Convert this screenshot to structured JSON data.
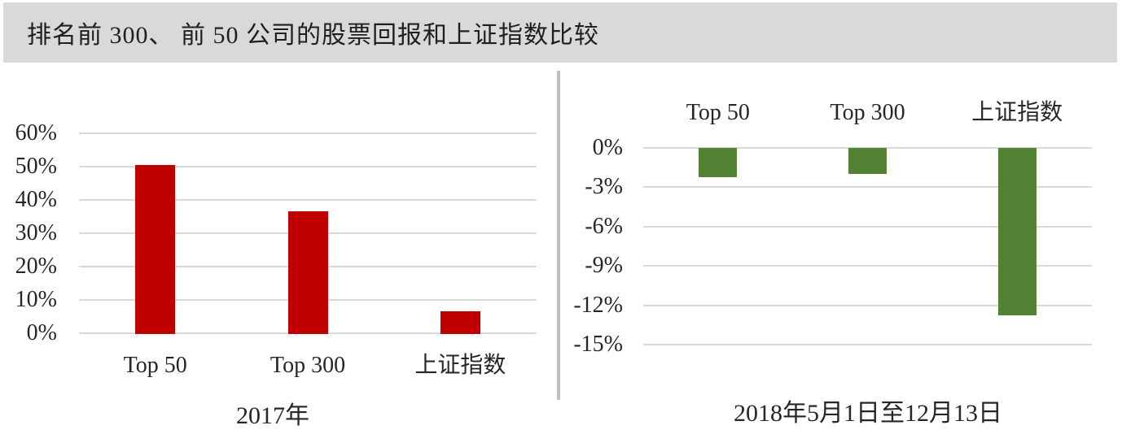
{
  "header": {
    "title": "排名前 300、 前 50 公司的股票回报和上证指数比较"
  },
  "colors": {
    "bar_red": "#c00000",
    "bar_green": "#548235",
    "gridline": "#d9d9d9",
    "title_bar_bg": "#d9d9d9",
    "divider": "#bfbfbf",
    "text": "#262626"
  },
  "chart_data": [
    {
      "type": "bar",
      "title": "2017年",
      "categories": [
        "Top 50",
        "Top 300",
        "上证指数"
      ],
      "values": [
        50.5,
        36.5,
        6.5
      ],
      "value_unit": "percent",
      "bar_color": "#c00000",
      "ylim": [
        0,
        60
      ],
      "yticks": [
        {
          "label": "60%",
          "value": 60
        },
        {
          "label": "50%",
          "value": 50
        },
        {
          "label": "40%",
          "value": 40
        },
        {
          "label": "30%",
          "value": 30
        },
        {
          "label": "20%",
          "value": 20
        },
        {
          "label": "10%",
          "value": 10
        },
        {
          "label": "0%",
          "value": 0
        }
      ],
      "grid": true,
      "legend": "none",
      "category_labels_position": "bottom"
    },
    {
      "type": "bar",
      "title": "2018年5月1日至12月13日",
      "categories": [
        "Top 50",
        "Top 300",
        "上证指数"
      ],
      "values": [
        -2.2,
        -1.9,
        -12.7
      ],
      "value_unit": "percent",
      "bar_color": "#548235",
      "ylim": [
        -15,
        0
      ],
      "yticks": [
        {
          "label": "0%",
          "value": 0
        },
        {
          "label": "-3%",
          "value": -3
        },
        {
          "label": "-6%",
          "value": -6
        },
        {
          "label": "-9%",
          "value": -9
        },
        {
          "label": "-12%",
          "value": -12
        },
        {
          "label": "-15%",
          "value": -15
        }
      ],
      "grid": true,
      "legend": "none",
      "category_labels_position": "top"
    }
  ]
}
